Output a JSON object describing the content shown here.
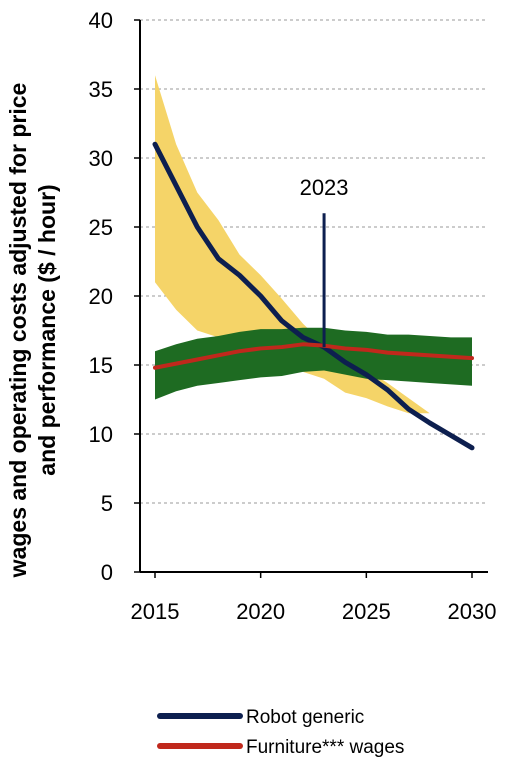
{
  "chart_data": {
    "type": "line",
    "ylabel_line1": "wages and operating costs adjusted for price",
    "ylabel_line2": "and performance ($ / hour)",
    "xlim": [
      2015,
      2030
    ],
    "ylim": [
      0,
      40
    ],
    "x_ticks": [
      "2015",
      "2020",
      "2025",
      "2030"
    ],
    "y_ticks": [
      "0",
      "5",
      "10",
      "15",
      "20",
      "25",
      "30",
      "35",
      "40"
    ],
    "grid": "horizontal dashed",
    "annotation": {
      "label": "2023",
      "x": 2023,
      "y_top": 26,
      "y_bottom": 16.3
    },
    "series": [
      {
        "name": "Robot generic",
        "color": "#0d1f4f",
        "x": [
          2015,
          2016,
          2017,
          2018,
          2019,
          2020,
          2021,
          2022,
          2023,
          2024,
          2025,
          2026,
          2027,
          2028,
          2029,
          2030
        ],
        "values": [
          31,
          28,
          25,
          22.7,
          21.5,
          20,
          18.2,
          17,
          16.3,
          15.2,
          14.3,
          13.2,
          11.8,
          10.8,
          9.9,
          9.0
        ]
      },
      {
        "name": "Furniture*** wages",
        "color": "#c0281c",
        "x": [
          2015,
          2016,
          2017,
          2018,
          2019,
          2020,
          2021,
          2022,
          2023,
          2024,
          2025,
          2026,
          2027,
          2028,
          2029,
          2030
        ],
        "values": [
          14.8,
          15.1,
          15.4,
          15.7,
          16.0,
          16.2,
          16.3,
          16.5,
          16.4,
          16.2,
          16.1,
          15.9,
          15.8,
          15.7,
          15.6,
          15.5
        ]
      }
    ],
    "bands": [
      {
        "for_series": "Robot generic",
        "color": "#f5d468",
        "x": [
          2015,
          2016,
          2017,
          2018,
          2019,
          2020,
          2021,
          2022,
          2023,
          2024,
          2025,
          2026,
          2027,
          2028
        ],
        "upper": [
          36,
          31,
          27.5,
          25.5,
          23,
          21.5,
          19.8,
          18,
          16.5,
          15.3,
          14.7,
          13.7,
          12.6,
          11.5
        ],
        "lower": [
          21,
          19,
          17.5,
          17,
          16,
          15.8,
          15.3,
          14.5,
          14.0,
          13.0,
          12.6,
          12.0,
          11.5,
          11.5
        ]
      },
      {
        "for_series": "Furniture*** wages",
        "color": "#1e6b22",
        "x": [
          2015,
          2016,
          2017,
          2018,
          2019,
          2020,
          2021,
          2022,
          2023,
          2024,
          2025,
          2026,
          2027,
          2028,
          2029,
          2030
        ],
        "upper": [
          16.0,
          16.5,
          16.9,
          17.1,
          17.4,
          17.6,
          17.6,
          17.7,
          17.7,
          17.5,
          17.4,
          17.2,
          17.2,
          17.1,
          17.0,
          17.0
        ],
        "lower": [
          12.5,
          13.1,
          13.5,
          13.7,
          13.9,
          14.1,
          14.2,
          14.5,
          14.6,
          14.3,
          14.0,
          13.9,
          13.8,
          13.7,
          13.6,
          13.5
        ]
      }
    ]
  }
}
